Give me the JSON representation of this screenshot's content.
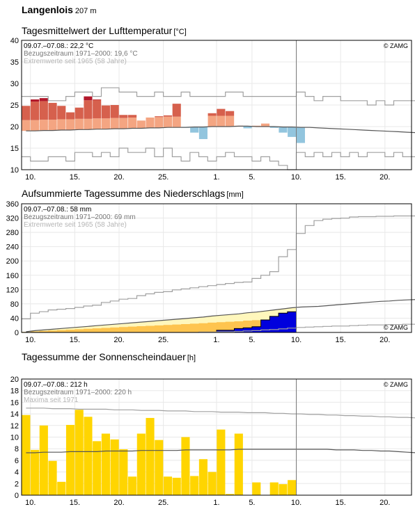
{
  "station": {
    "name": "Langenlois",
    "altitude": "207 m"
  },
  "colors": {
    "grid": "#e8e8e8",
    "frame": "#000000",
    "ref_line": "#555555",
    "extreme_line": "#a0a0a0",
    "temp_warm_light": "#f4a582",
    "temp_warm_dark": "#d6604d",
    "temp_warm_darker": "#b2182b",
    "temp_cold": "#92c5de",
    "temp_cold_dark": "#4393c3",
    "precip_light": "#fff7bc",
    "precip_mid": "#fec44f",
    "precip_blue": "#0000dd",
    "sun_yellow": "#ffd500",
    "info_dark": "#000000",
    "info_mid": "#777777",
    "info_light": "#b5b5b5"
  },
  "chart_data": [
    {
      "id": "temperature",
      "type": "bar",
      "title": "Tagesmittelwert der Lufttemperatur",
      "unit": "[°C]",
      "ylim": [
        10,
        40
      ],
      "yticks": [
        10,
        15,
        20,
        25,
        30,
        35,
        40
      ],
      "info": [
        "09.07.–07.08.: 22,2 °C",
        "Bezugszeitraum 1971–2000: 19,6 °C",
        "Extremwerte seit 1965 (58 Jahre)"
      ],
      "copyright": "© ZAMG",
      "xticks": [
        {
          "day": 1,
          "label": "10."
        },
        {
          "day": 6,
          "label": "15."
        },
        {
          "day": 11,
          "label": "20."
        },
        {
          "day": 16,
          "label": "25."
        },
        {
          "day": 22,
          "label": "1."
        },
        {
          "day": 26,
          "label": "5."
        },
        {
          "day": 31,
          "label": "10."
        },
        {
          "day": 36,
          "label": "15."
        },
        {
          "day": 41,
          "label": "20."
        }
      ],
      "today_day": 30,
      "x_range": [
        0,
        44
      ],
      "values": [
        24.8,
        26.3,
        26.6,
        25.5,
        24.8,
        23.3,
        24.4,
        27.0,
        26.3,
        24.9,
        25.0,
        22.7,
        22.7,
        21.4,
        22.1,
        22.4,
        22.6,
        25.3,
        19.7,
        18.6,
        17.1,
        23.1,
        24.1,
        23.6,
        20.2,
        19.6,
        20.2,
        20.7,
        19.7,
        18.6,
        17.6,
        16.2
      ],
      "reference": [
        19.0,
        19.0,
        19.1,
        19.1,
        19.2,
        19.2,
        19.3,
        19.3,
        19.4,
        19.4,
        19.5,
        19.5,
        19.6,
        19.6,
        19.7,
        19.7,
        19.8,
        19.8,
        19.8,
        19.9,
        19.9,
        20.0,
        20.0,
        20.0,
        20.1,
        20.1,
        20.0,
        20.0,
        20.0,
        19.9,
        19.9,
        19.8,
        19.8,
        19.7,
        19.6,
        19.5,
        19.4,
        19.3,
        19.2,
        19.1,
        19.0,
        18.9,
        18.8,
        18.7,
        18.6
      ],
      "max_extreme": [
        27,
        27,
        27,
        26,
        26,
        27,
        28,
        28,
        27,
        29,
        29,
        28,
        28,
        27,
        27,
        28,
        27,
        27,
        28,
        27,
        27,
        27,
        27,
        28,
        28,
        27,
        27,
        27,
        27,
        27,
        27,
        28,
        27,
        26,
        27,
        27,
        26,
        26,
        26,
        25,
        26,
        25,
        26,
        26,
        26
      ],
      "min_extreme": [
        13,
        12,
        12,
        13,
        13,
        12,
        14,
        14,
        13,
        14,
        13,
        15,
        14,
        14,
        15,
        13,
        15,
        13,
        12,
        14,
        13,
        12,
        13,
        14,
        13,
        13,
        12,
        13,
        12,
        11,
        10,
        14,
        13,
        14,
        13,
        14,
        13,
        14,
        13,
        14,
        14,
        13,
        14,
        13,
        13
      ]
    },
    {
      "id": "precipitation",
      "type": "area",
      "title": "Aufsummierte Tagessumme des Niederschlags",
      "unit": "[mm]",
      "ylim": [
        0,
        360
      ],
      "yticks": [
        0,
        40,
        80,
        120,
        160,
        200,
        240,
        280,
        320,
        360
      ],
      "info": [
        "09.07.–07.08.: 58 mm",
        "Bezugszeitraum 1971–2000: 69 mm",
        "Extremwerte seit 1965 (58 Jahre)"
      ],
      "copyright": "© ZAMG",
      "xticks": [
        {
          "day": 1,
          "label": "10."
        },
        {
          "day": 6,
          "label": "15."
        },
        {
          "day": 11,
          "label": "20."
        },
        {
          "day": 16,
          "label": "25."
        },
        {
          "day": 22,
          "label": "1."
        },
        {
          "day": 26,
          "label": "5."
        },
        {
          "day": 31,
          "label": "10."
        },
        {
          "day": 36,
          "label": "15."
        },
        {
          "day": 41,
          "label": "20."
        }
      ],
      "today_day": 30,
      "x_range": [
        0,
        44
      ],
      "actual": [
        0,
        0,
        0,
        0,
        0,
        0,
        0,
        0,
        0,
        0,
        0,
        0,
        0,
        0,
        0,
        0,
        0,
        0,
        0,
        0,
        0,
        0,
        6,
        6,
        11,
        13,
        16,
        35,
        45,
        54,
        58
      ],
      "reference": [
        2,
        5,
        7,
        9,
        11,
        13,
        15,
        17,
        19,
        21,
        23,
        25,
        27,
        29,
        31,
        33,
        35,
        37,
        39,
        41,
        43,
        46,
        48,
        50,
        52,
        55,
        57,
        60,
        63,
        66,
        69,
        71,
        72,
        73,
        75,
        77,
        79,
        81,
        83,
        85,
        87,
        88,
        90,
        91,
        92
      ],
      "max_extreme": [
        38,
        54,
        58,
        63,
        65,
        67,
        70,
        74,
        76,
        84,
        88,
        93,
        95,
        103,
        108,
        112,
        114,
        119,
        122,
        125,
        128,
        131,
        134,
        137,
        140,
        141,
        151,
        160,
        170,
        212,
        232,
        277,
        299,
        313,
        317,
        319,
        320,
        323,
        324,
        324,
        325,
        325,
        326,
        326,
        326
      ],
      "min_extreme": [
        0,
        0,
        0,
        0,
        0,
        0,
        0,
        0,
        0,
        0,
        0,
        0,
        0,
        0,
        0,
        0,
        0,
        0,
        0,
        0,
        1,
        1,
        2,
        2,
        3,
        4,
        5,
        7,
        8,
        10,
        12,
        14,
        15,
        16,
        17,
        18,
        18,
        19,
        20,
        21,
        21,
        22,
        22,
        23,
        23
      ]
    },
    {
      "id": "sunshine",
      "type": "bar",
      "title": "Tagessumme der Sonnenscheindauer",
      "unit": "[h]",
      "ylim": [
        0,
        20
      ],
      "yticks": [
        0,
        2,
        4,
        6,
        8,
        10,
        12,
        14,
        16,
        18,
        20
      ],
      "info": [
        "09.07.–07.08.: 212 h",
        "Bezugszeitraum 1971–2000: 220 h",
        "Maxima seit 1971"
      ],
      "copyright": "© ZAMG",
      "xticks": [
        {
          "day": 1,
          "label": "10."
        },
        {
          "day": 6,
          "label": "15."
        },
        {
          "day": 11,
          "label": "20."
        },
        {
          "day": 16,
          "label": "25."
        },
        {
          "day": 22,
          "label": "1."
        },
        {
          "day": 26,
          "label": "5."
        },
        {
          "day": 31,
          "label": "10."
        },
        {
          "day": 36,
          "label": "15."
        },
        {
          "day": 41,
          "label": "20."
        }
      ],
      "today_day": 30,
      "x_range": [
        0,
        44
      ],
      "values": [
        13.8,
        7.8,
        12.0,
        5.9,
        2.3,
        12.1,
        14.7,
        13.5,
        9.3,
        10.6,
        9.6,
        7.9,
        3.2,
        10.6,
        13.3,
        9.5,
        3.2,
        3.0,
        10.0,
        3.3,
        6.2,
        4.0,
        11.3,
        0.2,
        10.6,
        0.0,
        2.2,
        0.0,
        2.2,
        1.9,
        2.6
      ],
      "reference": [
        7.3,
        7.3,
        7.4,
        7.4,
        7.4,
        7.5,
        7.5,
        7.5,
        7.5,
        7.6,
        7.6,
        7.6,
        7.6,
        7.7,
        7.7,
        7.7,
        7.7,
        7.7,
        7.8,
        7.8,
        7.8,
        7.8,
        7.8,
        7.8,
        7.9,
        7.9,
        7.9,
        7.9,
        7.9,
        7.9,
        7.9,
        7.9,
        7.9,
        7.9,
        7.9,
        7.8,
        7.8,
        7.8,
        7.7,
        7.7,
        7.6,
        7.6,
        7.5,
        7.4,
        7.3
      ],
      "max_extreme": [
        15.0,
        15.0,
        15.0,
        14.9,
        14.9,
        14.9,
        14.8,
        14.8,
        14.8,
        14.8,
        14.7,
        14.7,
        14.7,
        14.6,
        14.6,
        14.6,
        14.5,
        14.5,
        14.5,
        14.4,
        14.4,
        14.4,
        14.3,
        14.3,
        14.3,
        14.2,
        14.2,
        14.2,
        14.1,
        14.1,
        14.0,
        14.0,
        13.9,
        13.9,
        13.8,
        13.8,
        13.7,
        13.7,
        13.6,
        13.6,
        13.5,
        13.5,
        13.4,
        13.4,
        13.3
      ]
    }
  ]
}
